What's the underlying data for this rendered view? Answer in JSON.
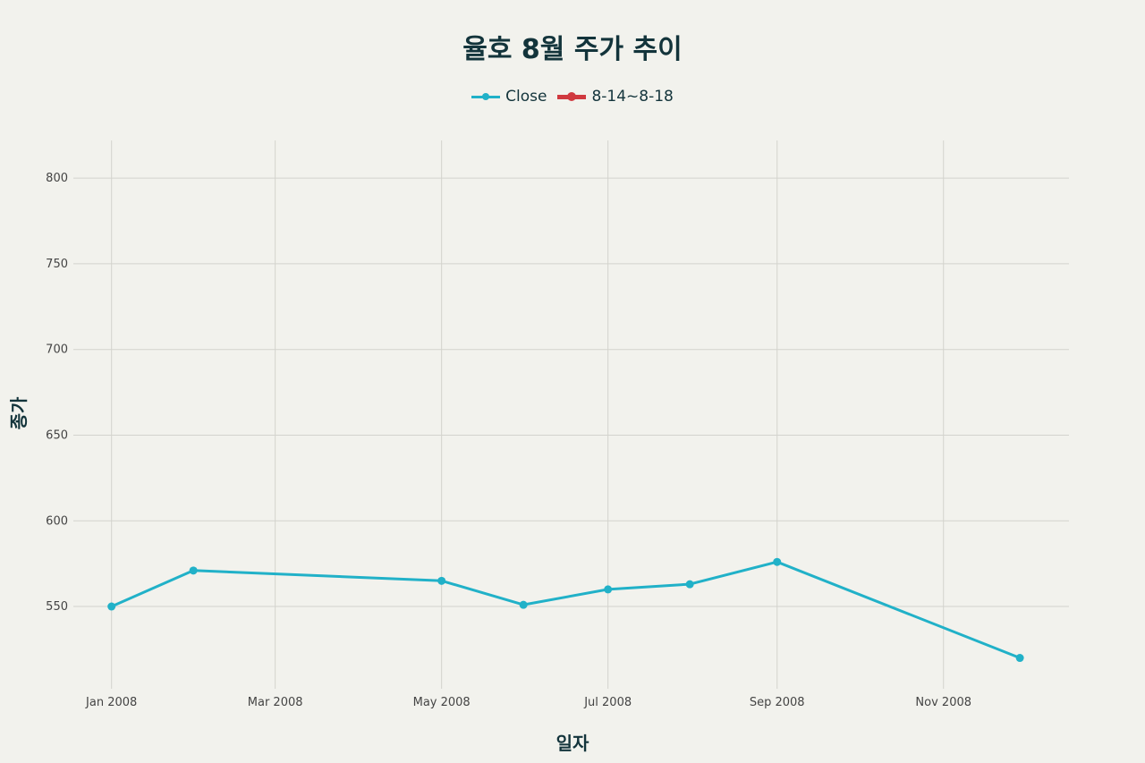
{
  "chart_data": {
    "type": "line",
    "title": "율호 8월 주가 추이",
    "xlabel": "일자",
    "ylabel": "종가",
    "x_ticks": [
      {
        "label": "Jan 2008",
        "date": "2008-01-01"
      },
      {
        "label": "Mar 2008",
        "date": "2008-03-01"
      },
      {
        "label": "May 2008",
        "date": "2008-05-01"
      },
      {
        "label": "Jul 2008",
        "date": "2008-07-01"
      },
      {
        "label": "Sep 2008",
        "date": "2008-09-01"
      },
      {
        "label": "Nov 2008",
        "date": "2008-11-01"
      }
    ],
    "xlim": [
      "2007-12-18",
      "2008-12-17"
    ],
    "y_ticks": [
      550,
      600,
      650,
      700,
      750,
      800
    ],
    "ylim": [
      502,
      822
    ],
    "grid": true,
    "legend_position": "top-center",
    "series": [
      {
        "name": "Close",
        "color": "#21b1c8",
        "points": [
          {
            "x": "2008-01-01",
            "y": 550
          },
          {
            "x": "2008-01-31",
            "y": 571
          },
          {
            "x": "2008-05-01",
            "y": 565
          },
          {
            "x": "2008-05-31",
            "y": 551
          },
          {
            "x": "2008-07-01",
            "y": 560
          },
          {
            "x": "2008-07-31",
            "y": 563
          },
          {
            "x": "2008-09-01",
            "y": 576
          },
          {
            "x": "2008-11-29",
            "y": 520
          }
        ]
      },
      {
        "name": "8-14~8-18",
        "color": "#d0393f",
        "points": []
      }
    ]
  }
}
